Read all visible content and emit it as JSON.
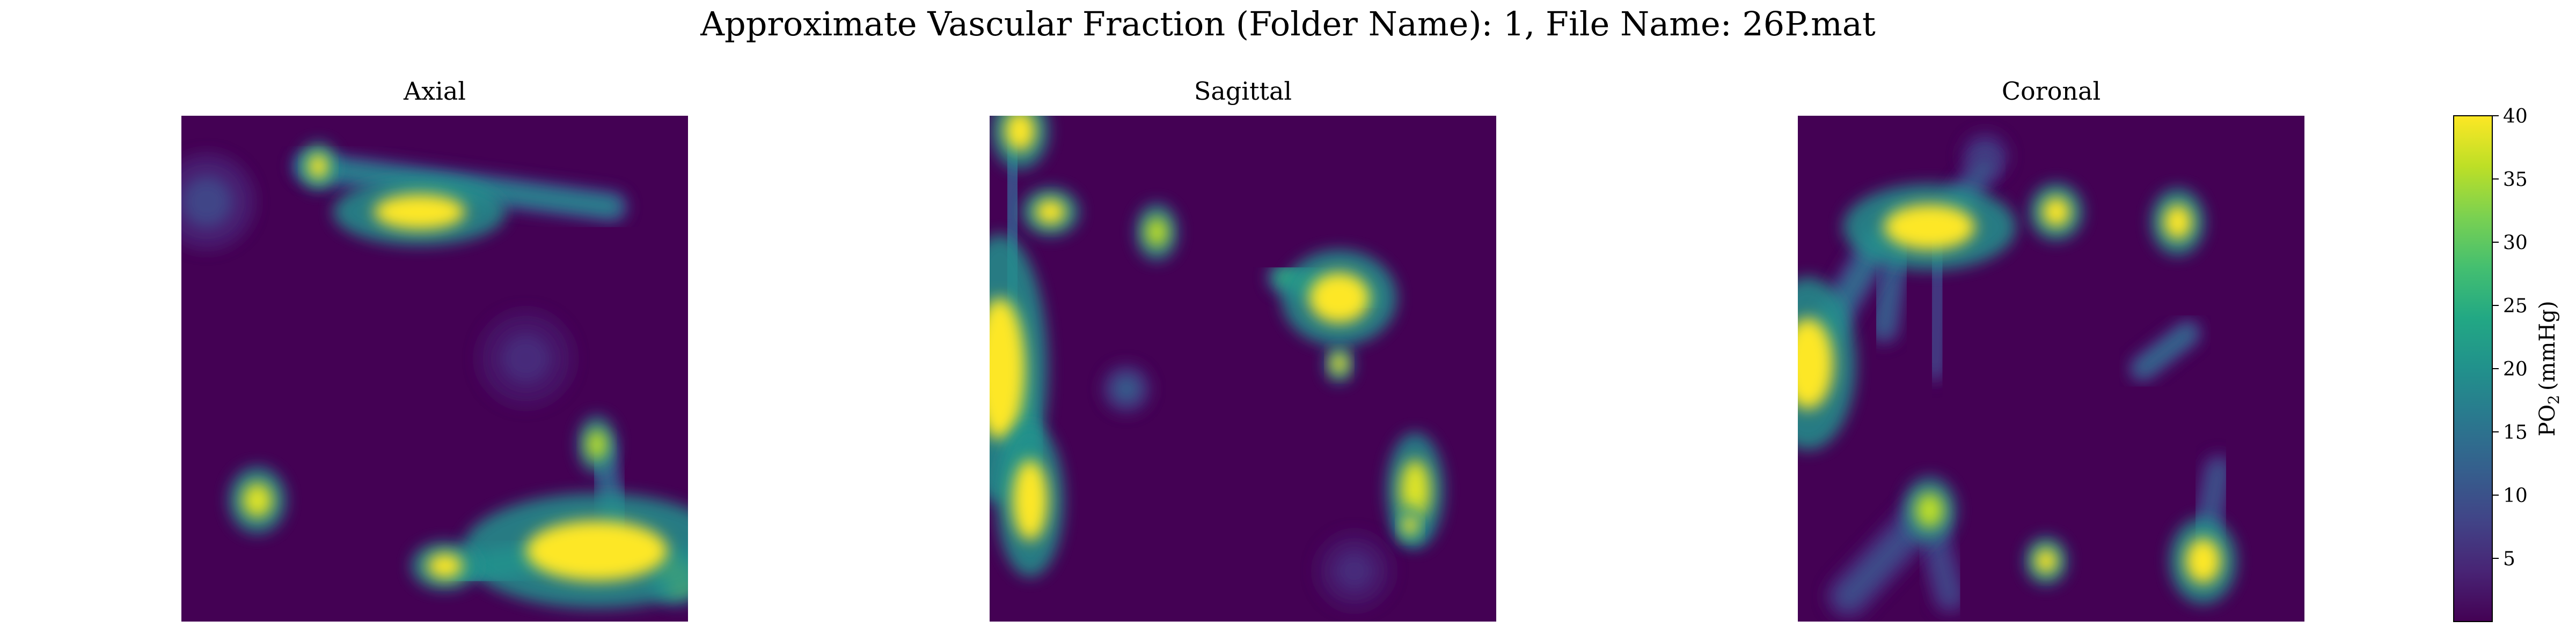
{
  "figure": {
    "suptitle": "Approximate Vascular Fraction (Folder Name): 1, File Name: 26P.mat"
  },
  "chart_data": [
    {
      "type": "heatmap",
      "title": "Axial",
      "colormap": "viridis",
      "vmin": 0,
      "vmax": 40,
      "axes_visible": false,
      "features": [
        {
          "shape": "blob",
          "cx": 0.27,
          "cy": 0.1,
          "rx": 0.02,
          "ry": 0.025,
          "value": 40
        },
        {
          "shape": "streak",
          "x1": 0.25,
          "y1": 0.1,
          "x2": 0.85,
          "y2": 0.18,
          "width": 0.035,
          "value": 18
        },
        {
          "shape": "blob",
          "cx": 0.47,
          "cy": 0.19,
          "rx": 0.09,
          "ry": 0.035,
          "value": 40
        },
        {
          "shape": "blob",
          "cx": 0.15,
          "cy": 0.76,
          "rx": 0.03,
          "ry": 0.035,
          "value": 38
        },
        {
          "shape": "blob",
          "cx": 0.82,
          "cy": 0.65,
          "rx": 0.02,
          "ry": 0.03,
          "value": 36
        },
        {
          "shape": "streak",
          "x1": 0.83,
          "y1": 0.66,
          "x2": 0.86,
          "y2": 0.82,
          "width": 0.03,
          "value": 14
        },
        {
          "shape": "blob",
          "cx": 0.82,
          "cy": 0.86,
          "rx": 0.14,
          "ry": 0.06,
          "value": 40
        },
        {
          "shape": "streak",
          "x1": 0.55,
          "y1": 0.9,
          "x2": 0.78,
          "y2": 0.86,
          "width": 0.04,
          "value": 20
        },
        {
          "shape": "blob",
          "cx": 0.52,
          "cy": 0.89,
          "rx": 0.035,
          "ry": 0.025,
          "value": 40
        },
        {
          "shape": "blob",
          "cx": 0.98,
          "cy": 0.91,
          "rx": 0.03,
          "ry": 0.03,
          "value": 36
        },
        {
          "shape": "blob",
          "cx": 0.05,
          "cy": 0.17,
          "rx": 0.05,
          "ry": 0.05,
          "value": 8
        },
        {
          "shape": "blob",
          "cx": 0.68,
          "cy": 0.48,
          "rx": 0.05,
          "ry": 0.05,
          "value": 5
        }
      ]
    },
    {
      "type": "heatmap",
      "title": "Sagittal",
      "colormap": "viridis",
      "vmin": 0,
      "vmax": 40,
      "axes_visible": false,
      "features": [
        {
          "shape": "blob",
          "cx": 0.06,
          "cy": 0.03,
          "rx": 0.03,
          "ry": 0.04,
          "value": 40
        },
        {
          "shape": "streak",
          "x1": 0.05,
          "y1": 0.04,
          "x2": 0.04,
          "y2": 0.4,
          "width": 0.04,
          "value": 10
        },
        {
          "shape": "blob",
          "cx": 0.12,
          "cy": 0.19,
          "rx": 0.03,
          "ry": 0.025,
          "value": 40
        },
        {
          "shape": "blob",
          "cx": 0.02,
          "cy": 0.5,
          "rx": 0.05,
          "ry": 0.14,
          "value": 40
        },
        {
          "shape": "streak",
          "x1": 0.03,
          "y1": 0.4,
          "x2": 0.08,
          "y2": 0.78,
          "width": 0.04,
          "value": 24
        },
        {
          "shape": "blob",
          "cx": 0.08,
          "cy": 0.76,
          "rx": 0.035,
          "ry": 0.08,
          "value": 40
        },
        {
          "shape": "blob",
          "cx": 0.33,
          "cy": 0.23,
          "rx": 0.022,
          "ry": 0.03,
          "value": 36
        },
        {
          "shape": "blob",
          "cx": 0.69,
          "cy": 0.36,
          "rx": 0.06,
          "ry": 0.05,
          "value": 40
        },
        {
          "shape": "streak",
          "x1": 0.58,
          "y1": 0.32,
          "x2": 0.73,
          "y2": 0.36,
          "width": 0.035,
          "value": 26
        },
        {
          "shape": "streak",
          "x1": 0.7,
          "y1": 0.36,
          "x2": 0.7,
          "y2": 0.49,
          "width": 0.035,
          "value": 28
        },
        {
          "shape": "blob",
          "cx": 0.69,
          "cy": 0.49,
          "rx": 0.015,
          "ry": 0.02,
          "value": 40
        },
        {
          "shape": "blob",
          "cx": 0.84,
          "cy": 0.74,
          "rx": 0.03,
          "ry": 0.06,
          "value": 38
        },
        {
          "shape": "blob",
          "cx": 0.83,
          "cy": 0.81,
          "rx": 0.015,
          "ry": 0.02,
          "value": 40
        },
        {
          "shape": "blob",
          "cx": 0.27,
          "cy": 0.54,
          "rx": 0.025,
          "ry": 0.025,
          "value": 12
        },
        {
          "shape": "blob",
          "cx": 0.72,
          "cy": 0.9,
          "rx": 0.04,
          "ry": 0.04,
          "value": 5
        }
      ]
    },
    {
      "type": "heatmap",
      "title": "Coronal",
      "colormap": "viridis",
      "vmin": 0,
      "vmax": 40,
      "axes_visible": false,
      "features": [
        {
          "shape": "blob",
          "cx": 0.02,
          "cy": 0.49,
          "rx": 0.05,
          "ry": 0.09,
          "value": 40
        },
        {
          "shape": "streak",
          "x1": 0.04,
          "y1": 0.45,
          "x2": 0.16,
          "y2": 0.25,
          "width": 0.04,
          "value": 14
        },
        {
          "shape": "blob",
          "cx": 0.26,
          "cy": 0.22,
          "rx": 0.09,
          "ry": 0.045,
          "value": 40
        },
        {
          "shape": "streak",
          "x1": 0.2,
          "y1": 0.21,
          "x2": 0.17,
          "y2": 0.42,
          "width": 0.035,
          "value": 12
        },
        {
          "shape": "streak",
          "x1": 0.29,
          "y1": 0.21,
          "x2": 0.37,
          "y2": 0.1,
          "width": 0.035,
          "value": 10
        },
        {
          "shape": "blob",
          "cx": 0.37,
          "cy": 0.08,
          "rx": 0.025,
          "ry": 0.025,
          "value": 9
        },
        {
          "shape": "streak",
          "x1": 0.28,
          "y1": 0.22,
          "x2": 0.27,
          "y2": 0.5,
          "width": 0.03,
          "value": 8
        },
        {
          "shape": "blob",
          "cx": 0.51,
          "cy": 0.19,
          "rx": 0.028,
          "ry": 0.03,
          "value": 40
        },
        {
          "shape": "blob",
          "cx": 0.75,
          "cy": 0.21,
          "rx": 0.028,
          "ry": 0.035,
          "value": 40
        },
        {
          "shape": "streak",
          "x1": 0.68,
          "y1": 0.5,
          "x2": 0.77,
          "y2": 0.43,
          "width": 0.03,
          "value": 14
        },
        {
          "shape": "blob",
          "cx": 0.26,
          "cy": 0.78,
          "rx": 0.028,
          "ry": 0.035,
          "value": 36
        },
        {
          "shape": "streak",
          "x1": 0.25,
          "y1": 0.79,
          "x2": 0.1,
          "y2": 0.95,
          "width": 0.05,
          "value": 9
        },
        {
          "shape": "streak",
          "x1": 0.26,
          "y1": 0.8,
          "x2": 0.3,
          "y2": 0.95,
          "width": 0.04,
          "value": 8
        },
        {
          "shape": "blob",
          "cx": 0.49,
          "cy": 0.88,
          "rx": 0.022,
          "ry": 0.025,
          "value": 40
        },
        {
          "shape": "blob",
          "cx": 0.8,
          "cy": 0.88,
          "rx": 0.035,
          "ry": 0.045,
          "value": 40
        },
        {
          "shape": "streak",
          "x1": 0.8,
          "y1": 0.86,
          "x2": 0.83,
          "y2": 0.7,
          "width": 0.035,
          "value": 10
        }
      ]
    }
  ],
  "colorbar": {
    "label_main": "PO",
    "label_sub": "2",
    "label_unit": "(mmHg)",
    "vmin": 0,
    "vmax": 40,
    "ticks": [
      5,
      10,
      15,
      20,
      25,
      30,
      35,
      40
    ],
    "tick_labels": [
      "5",
      "10",
      "15",
      "20",
      "25",
      "30",
      "35",
      "40"
    ]
  }
}
